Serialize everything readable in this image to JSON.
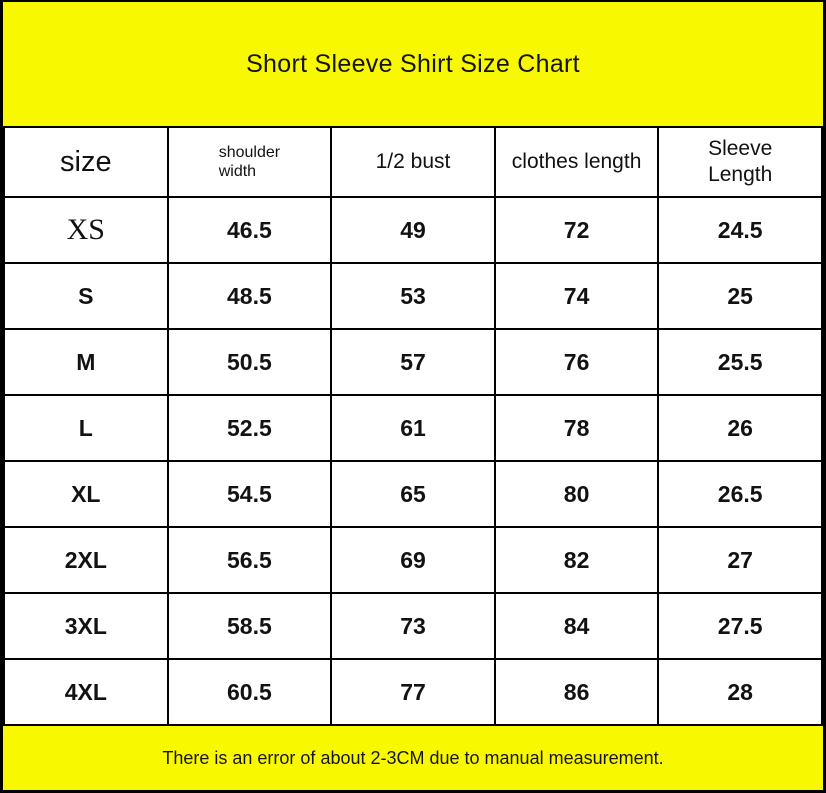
{
  "header": {
    "title": "Short Sleeve Shirt Size Chart"
  },
  "footer": {
    "note": "There is an error of about 2-3CM due to manual measurement."
  },
  "colors": {
    "banner_yellow": "#f8f800",
    "border_black": "#000000",
    "text_black": "#121212",
    "background_white": "#ffffff"
  },
  "chart_data": {
    "type": "table",
    "title": "Short Sleeve Shirt Size Chart",
    "columns": [
      "size",
      "shoulder\nwidth",
      "1/2 bust",
      "clothes length",
      "Sleeve\nLength"
    ],
    "rows": [
      {
        "size": "XS",
        "shoulder_width": "46.5",
        "half_bust": "49",
        "clothes_length": "72",
        "sleeve_length": "24.5"
      },
      {
        "size": "S",
        "shoulder_width": "48.5",
        "half_bust": "53",
        "clothes_length": "74",
        "sleeve_length": "25"
      },
      {
        "size": "M",
        "shoulder_width": "50.5",
        "half_bust": "57",
        "clothes_length": "76",
        "sleeve_length": "25.5"
      },
      {
        "size": "L",
        "shoulder_width": "52.5",
        "half_bust": "61",
        "clothes_length": "78",
        "sleeve_length": "26"
      },
      {
        "size": "XL",
        "shoulder_width": "54.5",
        "half_bust": "65",
        "clothes_length": "80",
        "sleeve_length": "26.5"
      },
      {
        "size": "2XL",
        "shoulder_width": "56.5",
        "half_bust": "69",
        "clothes_length": "82",
        "sleeve_length": "27"
      },
      {
        "size": "3XL",
        "shoulder_width": "58.5",
        "half_bust": "73",
        "clothes_length": "84",
        "sleeve_length": "27.5"
      },
      {
        "size": "4XL",
        "shoulder_width": "60.5",
        "half_bust": "77",
        "clothes_length": "86",
        "sleeve_length": "28"
      }
    ],
    "footnote": "There is an error of about 2-3CM due to manual measurement."
  }
}
